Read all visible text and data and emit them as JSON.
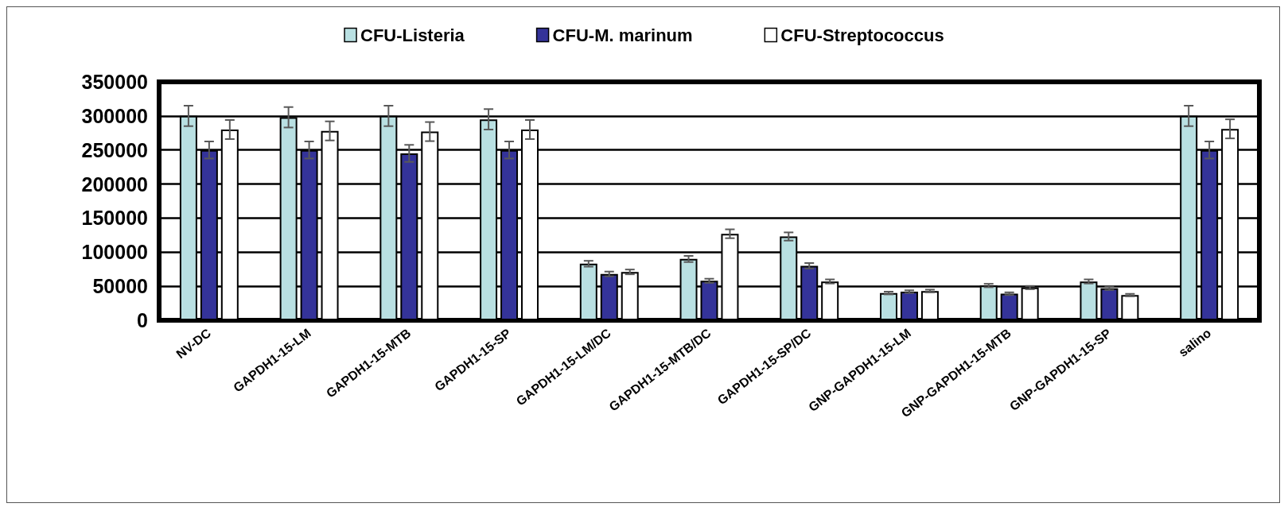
{
  "chart_data": {
    "type": "bar",
    "categories": [
      "NV-DC",
      "GAPDH1-15-LM",
      "GAPDH1-15-MTB",
      "GAPDH1-15-SP",
      "GAPDH1-15-LM/DC",
      "GAPDH1-15-MTB/DC",
      "GAPDH1-15-SP/DC",
      "GNP-GAPDH1-15-LM",
      "GNP-GAPDH1-15-MTB",
      "GNP-GAPDH1-15-SP",
      "salino"
    ],
    "series": [
      {
        "name": "CFU-Listeria",
        "color": "#b9e0e2",
        "values": [
          300000,
          298000,
          300000,
          295000,
          83000,
          90000,
          123000,
          40000,
          51000,
          57000,
          300000
        ],
        "errors": [
          15000,
          15000,
          15000,
          15000,
          4300,
          4500,
          6000,
          2000,
          2500,
          3000,
          15000
        ]
      },
      {
        "name": "CFU-M. marinum",
        "color": "#343399",
        "values": [
          250000,
          250000,
          245000,
          250000,
          68000,
          58000,
          80000,
          42000,
          39000,
          47000,
          250000
        ],
        "errors": [
          12500,
          12500,
          12500,
          12500,
          3500,
          3000,
          4000,
          2000,
          2000,
          2500,
          12500
        ]
      },
      {
        "name": "CFU-Streptococcus",
        "color": "#ffffff",
        "values": [
          280000,
          278000,
          277000,
          280000,
          71000,
          127000,
          57000,
          43000,
          48000,
          37000,
          281000
        ],
        "errors": [
          14000,
          14000,
          14000,
          14000,
          3500,
          6500,
          3000,
          2000,
          2400,
          1800,
          14000
        ]
      }
    ],
    "ylim": [
      0,
      350000
    ],
    "yticks": [
      0,
      50000,
      100000,
      150000,
      200000,
      250000,
      300000,
      350000
    ],
    "grid": "y",
    "legend": "top"
  }
}
